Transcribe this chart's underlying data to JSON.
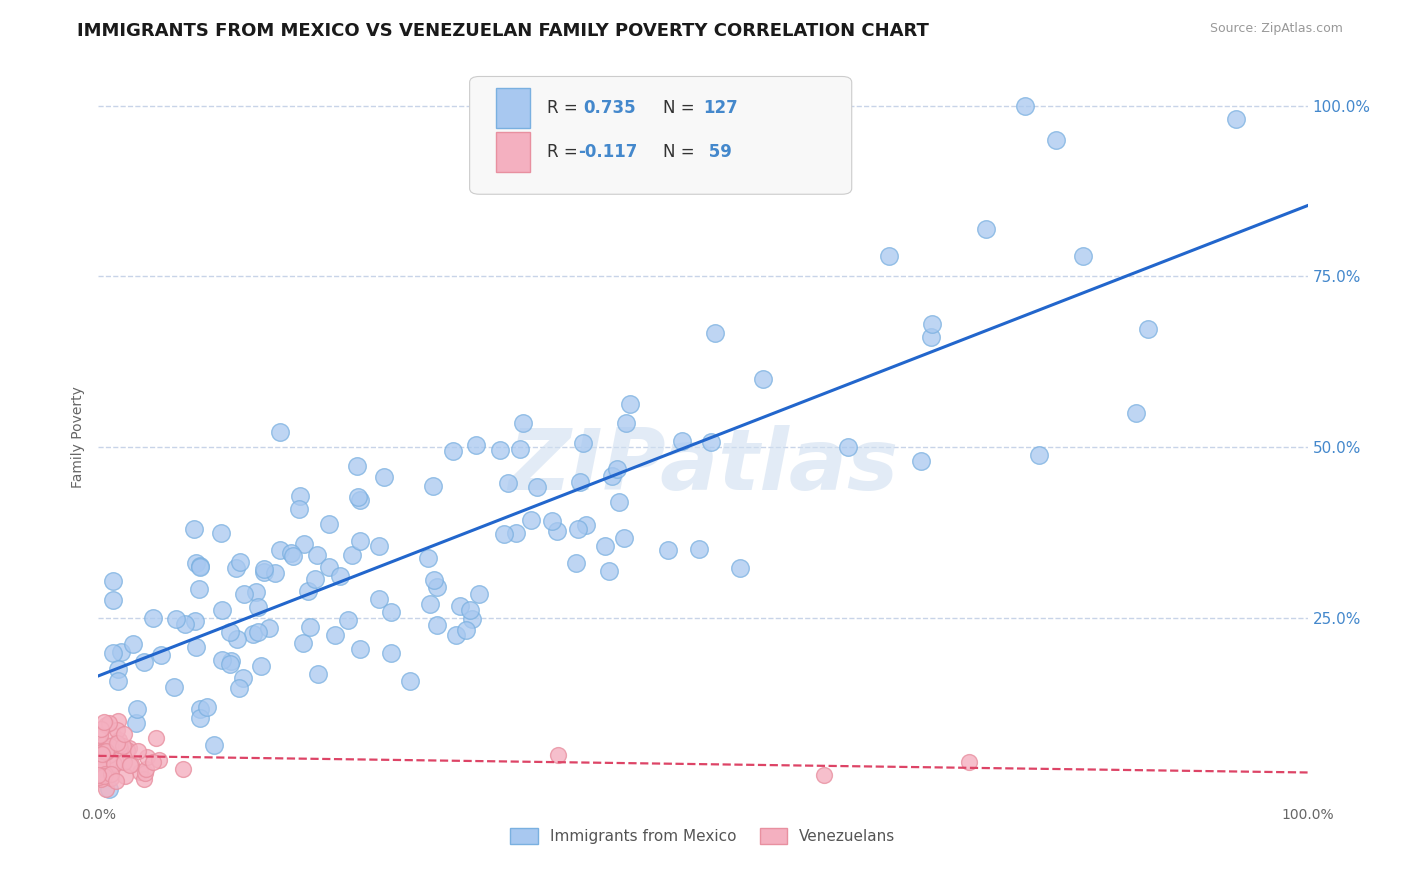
{
  "title": "IMMIGRANTS FROM MEXICO VS VENEZUELAN FAMILY POVERTY CORRELATION CHART",
  "source_text": "Source: ZipAtlas.com",
  "ylabel": "Family Poverty",
  "xlim": [
    0,
    1
  ],
  "ylim": [
    -0.02,
    1.05
  ],
  "series1_color": "#a8c8f0",
  "series1_edge": "#7ab0e0",
  "series2_color": "#f4b0c0",
  "series2_edge": "#e890a0",
  "line1_color": "#2266cc",
  "line2_color": "#dd4466",
  "watermark": "ZIPatlas",
  "background_color": "#ffffff",
  "grid_color": "#c8d4e8",
  "title_fontsize": 13,
  "axis_label_fontsize": 10,
  "right_tick_color": "#4488cc",
  "n1": 127,
  "n2": 59,
  "r1": 0.735,
  "r2": -0.117,
  "legend_label1": "Immigrants from Mexico",
  "legend_label2": "Venezuelans"
}
